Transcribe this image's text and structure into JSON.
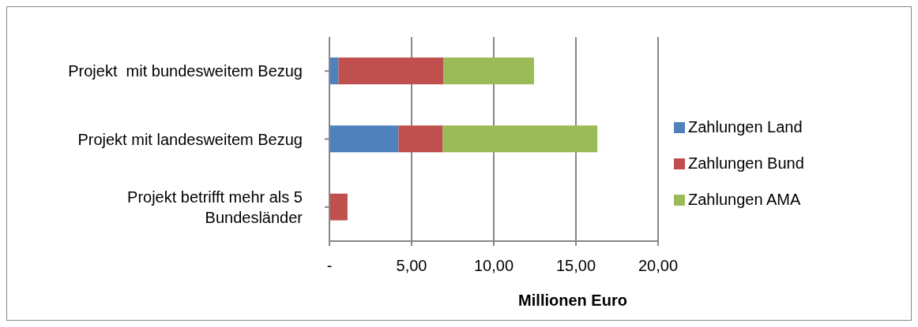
{
  "chart_data": {
    "type": "bar",
    "orientation": "horizontal",
    "stacked": true,
    "categories": [
      "Projekt  mit bundesweitem Bezug",
      "Projekt mit landesweitem Bezug",
      "Projekt betrifft mehr als 5 Bundesländer"
    ],
    "series": [
      {
        "name": "Zahlungen Land",
        "color": "#4f81bd",
        "values": [
          0.55,
          4.2,
          0
        ]
      },
      {
        "name": "Zahlungen Bund",
        "color": "#c0504d",
        "values": [
          6.4,
          2.7,
          1.1
        ]
      },
      {
        "name": "Zahlungen AMA",
        "color": "#9bbb59",
        "values": [
          5.5,
          9.4,
          0
        ]
      }
    ],
    "xlabel": "Millionen Euro",
    "xlim": [
      0,
      20
    ],
    "xticks": [
      {
        "value": 0,
        "label": "-"
      },
      {
        "value": 5,
        "label": "5,00"
      },
      {
        "value": 10,
        "label": "10,00"
      },
      {
        "value": 15,
        "label": "15,00"
      },
      {
        "value": 20,
        "label": "20,00"
      }
    ],
    "grid": "x",
    "legend": "right"
  }
}
